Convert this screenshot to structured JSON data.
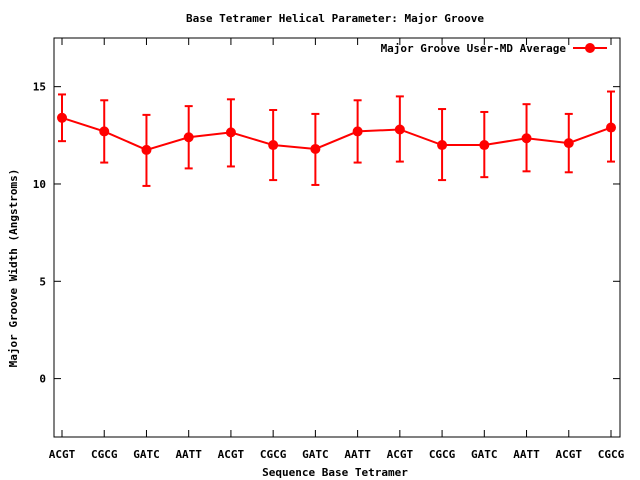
{
  "chart_data": {
    "type": "line",
    "title": "Base Tetramer Helical Parameter: Major Groove",
    "xlabel": "Sequence Base Tetramer",
    "ylabel": "Major Groove Width (Angstroms)",
    "categories": [
      "ACGT",
      "CGCG",
      "GATC",
      "AATT",
      "ACGT",
      "CGCG",
      "GATC",
      "AATT",
      "ACGT",
      "CGCG",
      "GATC",
      "AATT",
      "ACGT",
      "CGCG"
    ],
    "ylim": [
      -3,
      17.5
    ],
    "yticks": [
      0,
      5,
      10,
      15
    ],
    "grid": false,
    "legend_position": "top-right",
    "series": [
      {
        "name": "Major Groove User-MD Average",
        "color": "#ff0000",
        "values": [
          13.4,
          12.7,
          11.75,
          12.4,
          12.65,
          12.0,
          11.8,
          12.7,
          12.8,
          12.0,
          12.0,
          12.35,
          12.1,
          12.9
        ],
        "error_low": [
          12.2,
          11.1,
          9.9,
          10.8,
          10.9,
          10.2,
          9.95,
          11.1,
          11.15,
          10.2,
          10.35,
          10.65,
          10.6,
          11.15
        ],
        "error_high": [
          14.6,
          14.3,
          13.55,
          14.0,
          14.35,
          13.8,
          13.6,
          14.3,
          14.5,
          13.85,
          13.7,
          14.1,
          13.6,
          14.75
        ]
      }
    ]
  }
}
